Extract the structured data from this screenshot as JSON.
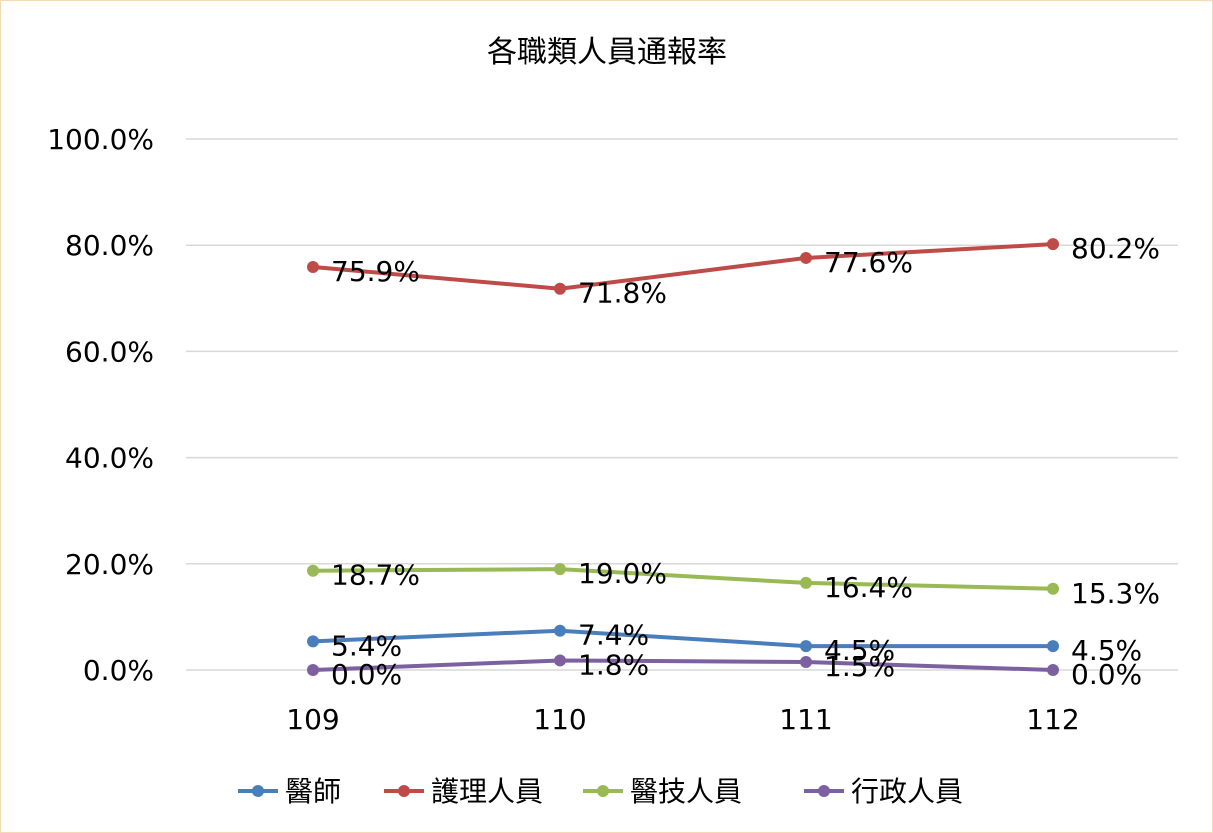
{
  "chart_data": {
    "type": "line",
    "title": "各職類人員通報率",
    "xlabel": "",
    "ylabel": "",
    "categories": [
      "109",
      "110",
      "111",
      "112"
    ],
    "y_tick_labels": [
      "100.0%",
      "80.0%",
      "60.0%",
      "40.0%",
      "20.0%",
      "0.0%"
    ],
    "ylim": [
      0,
      100
    ],
    "grid": true,
    "legend_position": "bottom",
    "series": [
      {
        "name": "醫師",
        "color": "#4a7ebb",
        "values": [
          5.4,
          7.4,
          4.5,
          4.5
        ],
        "labels": [
          "5.4%",
          "7.4%",
          "4.5%",
          "4.5%"
        ]
      },
      {
        "name": "護理人員",
        "color": "#be4b48",
        "values": [
          75.9,
          71.8,
          77.6,
          80.2
        ],
        "labels": [
          "75.9%",
          "71.8%",
          "77.6%",
          "80.2%"
        ]
      },
      {
        "name": "醫技人員",
        "color": "#98b954",
        "values": [
          18.7,
          19.0,
          16.4,
          15.3
        ],
        "labels": [
          "18.7%",
          "19.0%",
          "16.4%",
          "15.3%"
        ]
      },
      {
        "name": "行政人員",
        "color": "#7d60a0",
        "values": [
          0.0,
          1.8,
          1.5,
          0.0
        ],
        "labels": [
          "0.0%",
          "1.8%",
          "1.5%",
          "0.0%"
        ]
      }
    ]
  }
}
